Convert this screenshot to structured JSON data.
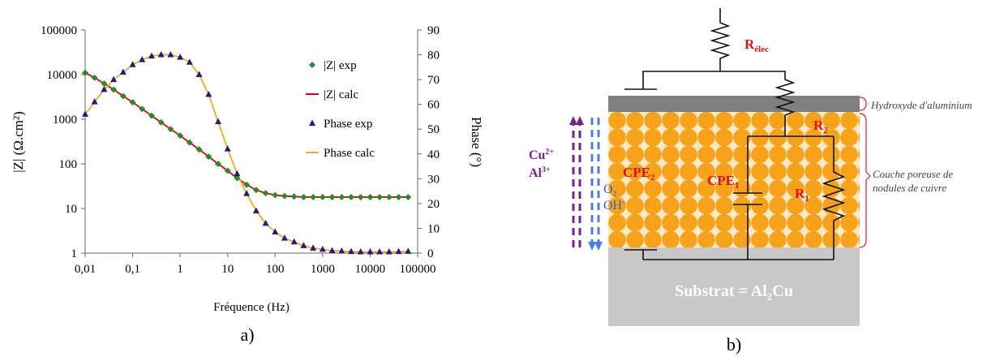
{
  "chart_data": {
    "type": "line",
    "x_log": true,
    "y_log": true,
    "xlabel": "Fréquence (Hz)",
    "ylabel": "|Z| (Ω.cm²)",
    "y2label": "Phase (°)",
    "caption": "a)",
    "x": [
      0.01,
      0.0158,
      0.0251,
      0.0398,
      0.0631,
      0.1,
      0.158,
      0.251,
      0.398,
      0.631,
      1,
      1.58,
      2.51,
      3.98,
      6.31,
      10,
      15.8,
      25.1,
      39.8,
      63.1,
      100,
      158,
      251,
      398,
      631,
      1000,
      1580,
      2510,
      3980,
      6310,
      10000,
      15800,
      25100,
      39800,
      63100
    ],
    "series": [
      {
        "name": "|Z| exp",
        "color": "#2a8a2a",
        "marker": "diamond",
        "values": [
          11000,
          8500,
          6300,
          4600,
          3300,
          2400,
          1700,
          1200,
          850,
          600,
          430,
          300,
          210,
          145,
          100,
          70,
          48,
          34,
          26,
          22,
          20,
          19,
          18.5,
          18,
          18,
          18,
          18,
          18,
          18,
          18,
          18,
          18,
          18,
          18,
          18
        ]
      },
      {
        "name": "|Z| calc",
        "color": "#e00000",
        "marker": "line",
        "values": [
          11000,
          8500,
          6300,
          4600,
          3300,
          2400,
          1700,
          1200,
          850,
          600,
          430,
          300,
          210,
          145,
          100,
          70,
          48,
          34,
          26,
          22,
          20,
          19,
          18.5,
          18,
          18,
          18,
          18,
          18,
          18,
          18,
          18,
          18,
          18,
          18,
          18
        ]
      },
      {
        "name": "Phase exp",
        "color": "#1f1f7a",
        "marker": "triangle",
        "axis": "y2",
        "values": [
          56,
          61,
          66,
          70,
          73,
          76,
          78,
          79.5,
          80,
          80,
          79,
          77,
          72,
          64,
          53,
          42,
          32,
          24,
          17,
          12,
          8.5,
          6,
          4.5,
          3,
          2,
          1.5,
          1,
          0.8,
          0.6,
          0.5,
          0.5,
          0.5,
          0.5,
          0.6,
          0.7
        ]
      },
      {
        "name": "Phase calc",
        "color": "#f5a623",
        "marker": "line",
        "axis": "y2",
        "values": [
          56,
          61,
          66,
          70,
          73,
          76,
          78,
          79.5,
          80,
          80,
          79,
          77,
          72,
          64,
          53,
          42,
          32,
          24,
          17,
          12,
          8.5,
          6,
          4.5,
          3,
          2,
          1.5,
          1,
          0.8,
          0.6,
          0.5,
          0.5,
          0.5,
          0.5,
          0.6,
          0.7
        ]
      }
    ],
    "xlim": [
      0.01,
      100000
    ],
    "xticks": [
      {
        "value": 0.01,
        "label": "0,01"
      },
      {
        "value": 0.1,
        "label": "0,1"
      },
      1,
      10,
      100,
      1000,
      10000,
      100000
    ],
    "ylim": [
      1,
      100000
    ],
    "yticks": [
      1,
      10,
      100,
      1000,
      10000,
      100000
    ],
    "y2lim": [
      0,
      90
    ],
    "y2ticks": [
      0,
      10,
      20,
      30,
      40,
      50,
      60,
      70,
      80,
      90
    ],
    "legend": "upper right"
  },
  "diagram": {
    "caption": "b)",
    "r_elec": {
      "main": "R",
      "sub": "élec"
    },
    "r2": {
      "main": "R",
      "sub": "2"
    },
    "r1": {
      "main": "R",
      "sub": "1"
    },
    "cpe2": {
      "main": "CPE",
      "sub": "2"
    },
    "cpe1": {
      "main": "CPE",
      "sub": "1"
    },
    "cu": {
      "main": "Cu",
      "sup": "2+"
    },
    "al": {
      "main": "Al",
      "sup": "3+"
    },
    "o2": {
      "main": "O",
      "sub": "2"
    },
    "oh": {
      "main": "OH",
      "sup": "-"
    },
    "hydroxide": "Hydroxyde d'aluminium",
    "porous": [
      "Couche poreuse de",
      "nodules de cuivre"
    ],
    "substrate": {
      "main": "Substrat = Al",
      "sub": "2",
      "end": "Cu"
    }
  }
}
